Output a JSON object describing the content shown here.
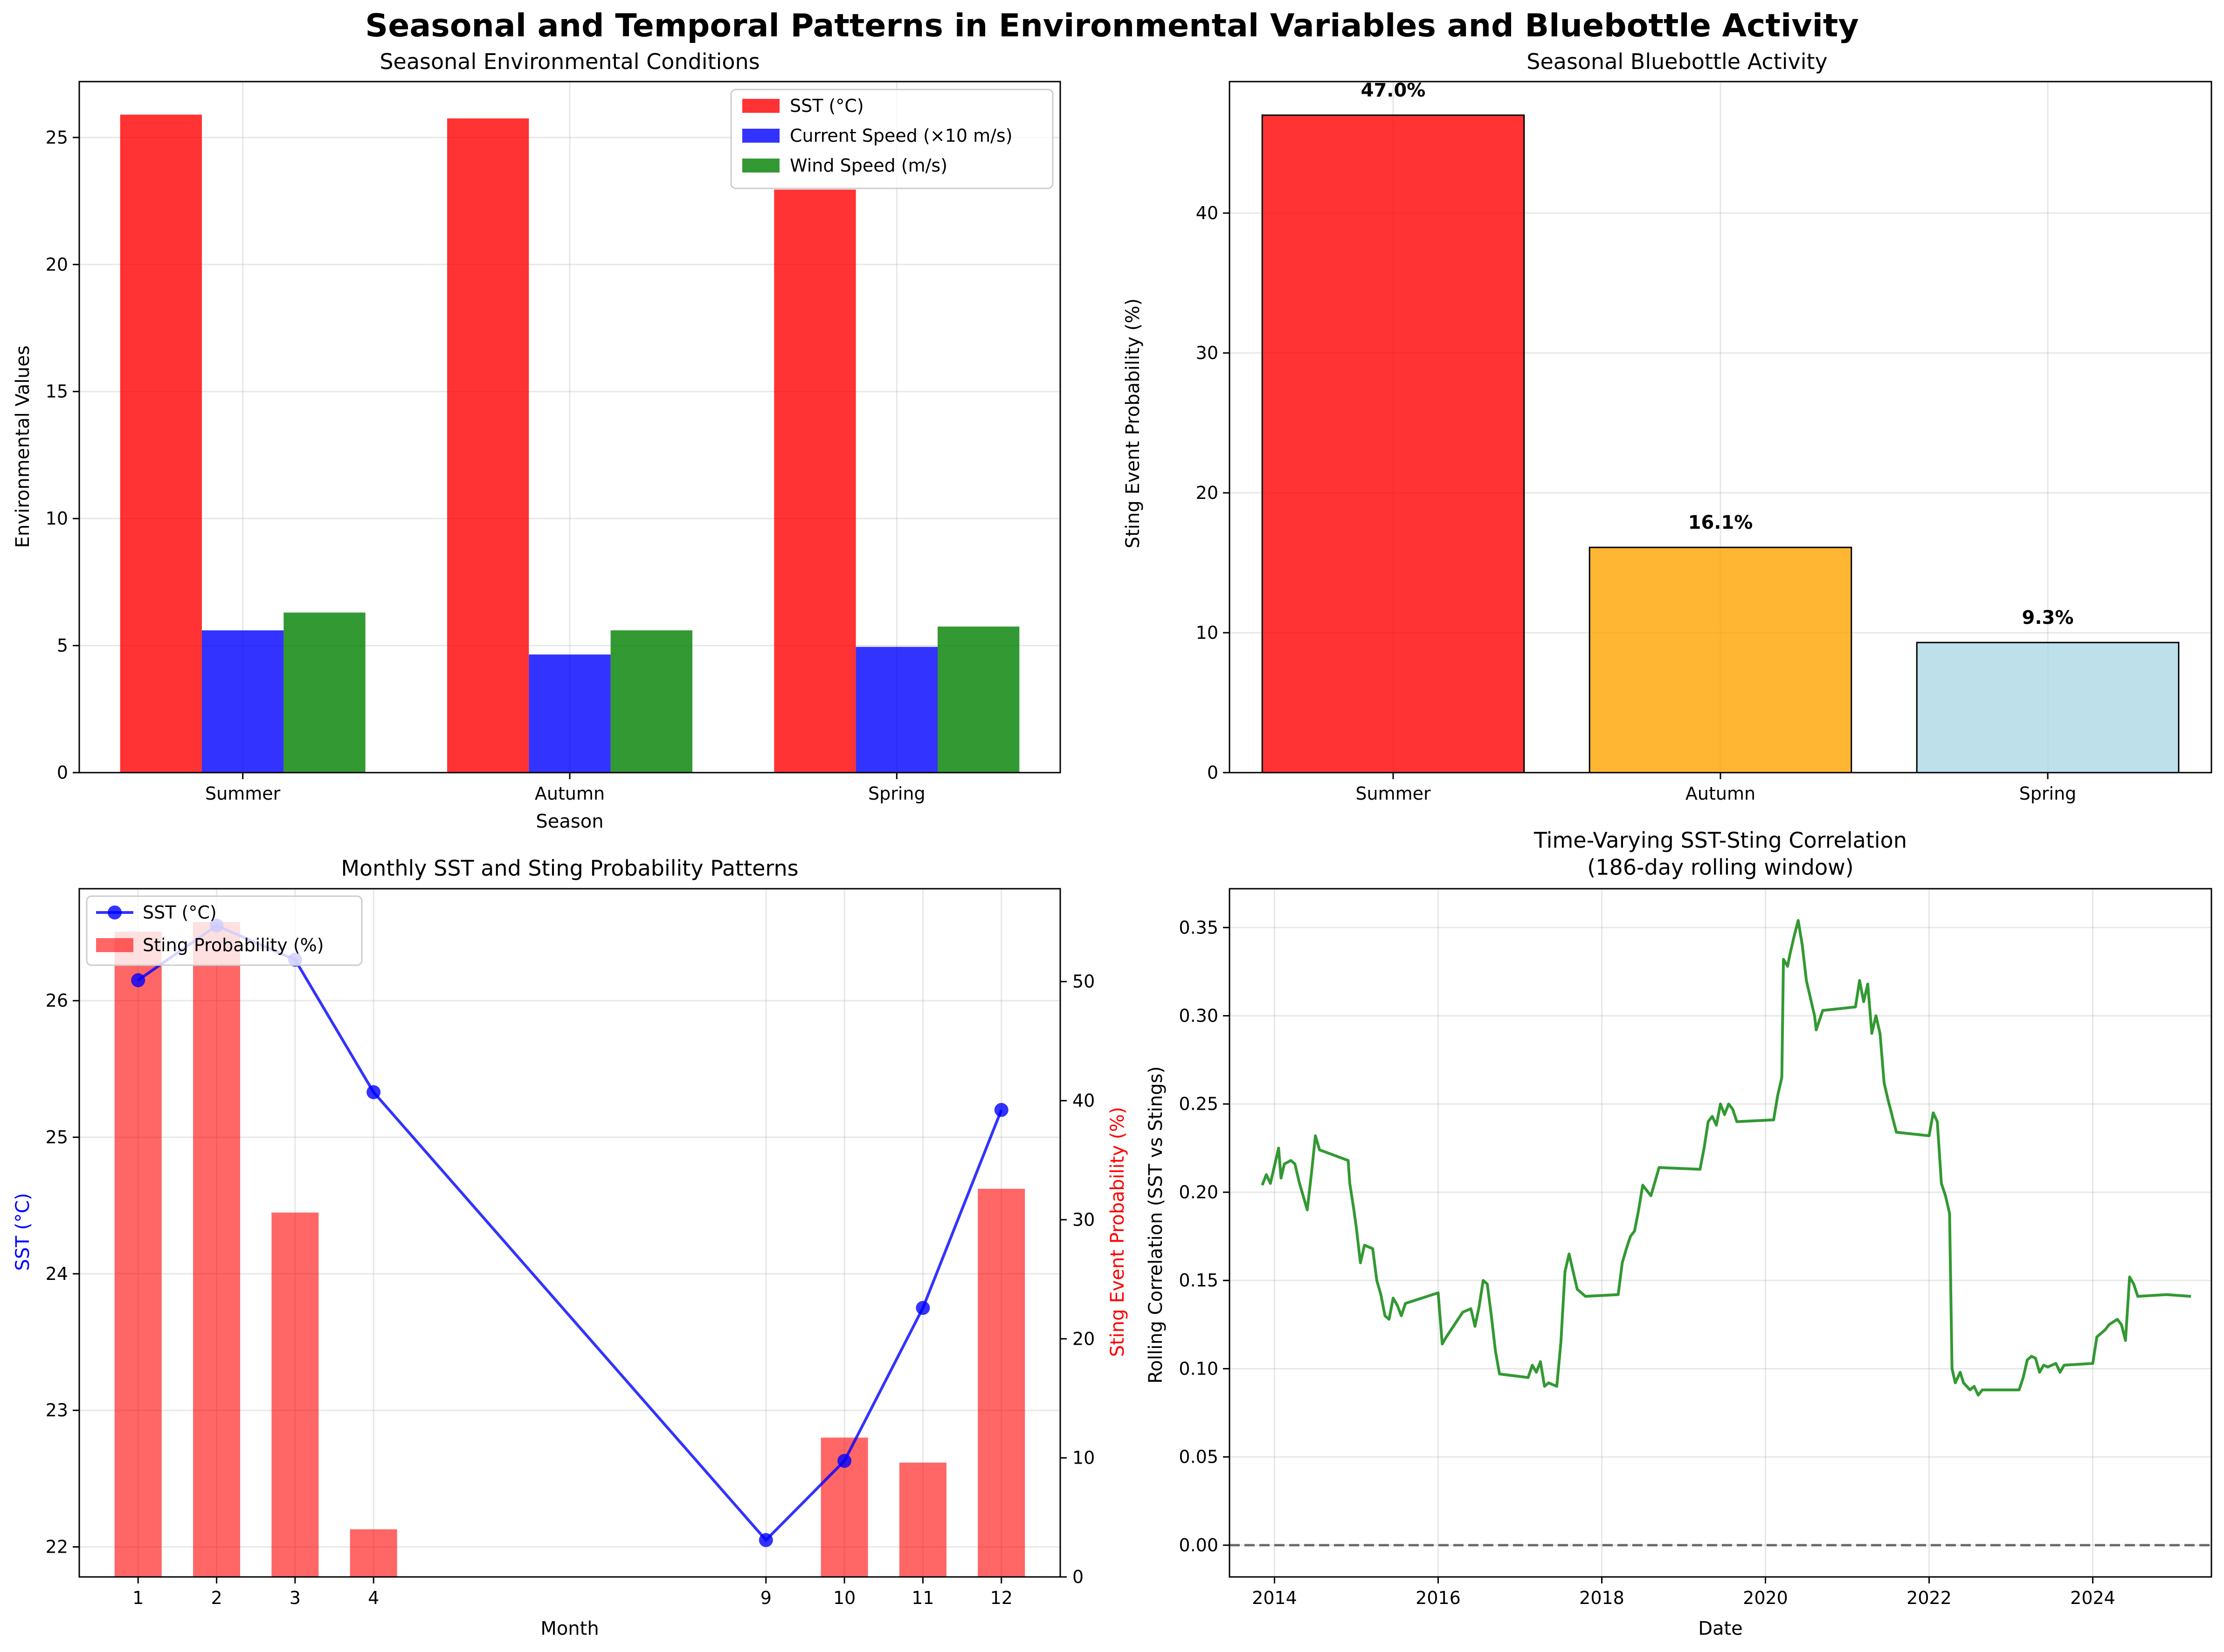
{
  "figure": {
    "title": "Seasonal and Temporal Patterns in Environmental Variables and Bluebottle Activity"
  },
  "chart_data": [
    {
      "id": "seasonal-env",
      "type": "bar",
      "title": "Seasonal Environmental Conditions",
      "xlabel": "Season",
      "ylabel": "Environmental Values",
      "categories": [
        "Summer",
        "Autumn",
        "Spring"
      ],
      "series": [
        {
          "name": "SST (°C)",
          "color": "#ff0000",
          "values": [
            25.9,
            25.75,
            22.95
          ]
        },
        {
          "name": "Current Speed (×10 m/s)",
          "color": "#0000ff",
          "values": [
            5.6,
            4.65,
            4.95
          ]
        },
        {
          "name": "Wind Speed (m/s)",
          "color": "#008000",
          "values": [
            6.3,
            5.6,
            5.75
          ]
        }
      ],
      "ylim": [
        0,
        27.2
      ],
      "yticks": [
        0,
        5,
        10,
        15,
        20,
        25
      ],
      "grid": true,
      "legend": "top-right"
    },
    {
      "id": "seasonal-sting",
      "type": "bar",
      "title": "Seasonal Bluebottle Activity",
      "xlabel": "",
      "ylabel": "Sting Event Probability (%)",
      "categories": [
        "Summer",
        "Autumn",
        "Spring"
      ],
      "values": [
        47.0,
        16.1,
        9.3
      ],
      "data_labels": [
        "47.0%",
        "16.1%",
        "9.3%"
      ],
      "colors": [
        "#ff0000",
        "#ffa500",
        "#add8e6"
      ],
      "ylim": [
        0,
        49.4
      ],
      "yticks": [
        0,
        10,
        20,
        30,
        40
      ],
      "grid": true
    },
    {
      "id": "monthly-patterns",
      "type": "line+bar",
      "title": "Monthly SST and Sting Probability Patterns",
      "xlabel": "Month",
      "ylabel": "SST (°C)",
      "ylabel_right": "Sting Event Probability (%)",
      "x": [
        1,
        2,
        3,
        4,
        9,
        10,
        11,
        12
      ],
      "series": [
        {
          "name": "SST (°C)",
          "kind": "line",
          "axis": "left",
          "color": "#0000ff",
          "values": [
            26.15,
            26.55,
            26.3,
            25.33,
            22.05,
            22.63,
            23.75,
            25.2
          ]
        },
        {
          "name": "Sting Probability (%)",
          "kind": "bar",
          "axis": "right",
          "color": "#ff0000",
          "values": [
            54.2,
            55.0,
            30.6,
            4.0,
            0,
            11.7,
            9.6,
            32.6
          ]
        }
      ],
      "xlim": [
        0.25,
        12.75
      ],
      "ylim": [
        21.78,
        26.82
      ],
      "ylim_right": [
        0,
        57.8
      ],
      "xticks": [
        1,
        2,
        3,
        4,
        9,
        10,
        11,
        12
      ],
      "yticks": [
        22,
        23,
        24,
        25,
        26
      ],
      "yticks_right": [
        0,
        10,
        20,
        30,
        40,
        50
      ],
      "grid": true,
      "legend": "top-left"
    },
    {
      "id": "rolling-correlation",
      "type": "line",
      "title": "Time-Varying SST-Sting Correlation",
      "subtitle": "(186-day rolling window)",
      "xlabel": "Date",
      "ylabel": "Rolling Correlation (SST vs Stings)",
      "color": "#008000",
      "reference_line": {
        "y": 0,
        "style": "dashed",
        "color": "#696969"
      },
      "xlim": [
        2013.45,
        2025.45
      ],
      "ylim": [
        -0.018,
        0.372
      ],
      "xticks": [
        2014,
        2016,
        2018,
        2020,
        2022,
        2024
      ],
      "yticks": [
        0.0,
        0.05,
        0.1,
        0.15,
        0.2,
        0.25,
        0.3,
        0.35
      ],
      "ytick_labels": [
        "0.00",
        "0.05",
        "0.10",
        "0.15",
        "0.20",
        "0.25",
        "0.30",
        "0.35"
      ],
      "grid": true,
      "points": [
        [
          2013.85,
          0.204
        ],
        [
          2013.9,
          0.21
        ],
        [
          2013.95,
          0.205
        ],
        [
          2014.0,
          0.215
        ],
        [
          2014.05,
          0.225
        ],
        [
          2014.08,
          0.208
        ],
        [
          2014.12,
          0.216
        ],
        [
          2014.2,
          0.218
        ],
        [
          2014.25,
          0.216
        ],
        [
          2014.3,
          0.206
        ],
        [
          2014.35,
          0.198
        ],
        [
          2014.4,
          0.19
        ],
        [
          2014.45,
          0.21
        ],
        [
          2014.5,
          0.232
        ],
        [
          2014.55,
          0.224
        ],
        [
          2014.9,
          0.218
        ],
        [
          2014.92,
          0.205
        ],
        [
          2014.97,
          0.19
        ],
        [
          2015.0,
          0.18
        ],
        [
          2015.05,
          0.16
        ],
        [
          2015.1,
          0.17
        ],
        [
          2015.2,
          0.168
        ],
        [
          2015.25,
          0.15
        ],
        [
          2015.3,
          0.142
        ],
        [
          2015.35,
          0.13
        ],
        [
          2015.4,
          0.128
        ],
        [
          2015.45,
          0.14
        ],
        [
          2015.5,
          0.136
        ],
        [
          2015.55,
          0.13
        ],
        [
          2015.6,
          0.137
        ],
        [
          2016.0,
          0.143
        ],
        [
          2016.05,
          0.114
        ],
        [
          2016.1,
          0.118
        ],
        [
          2016.2,
          0.125
        ],
        [
          2016.3,
          0.132
        ],
        [
          2016.4,
          0.134
        ],
        [
          2016.45,
          0.124
        ],
        [
          2016.5,
          0.135
        ],
        [
          2016.55,
          0.15
        ],
        [
          2016.6,
          0.148
        ],
        [
          2016.65,
          0.13
        ],
        [
          2016.7,
          0.11
        ],
        [
          2016.75,
          0.097
        ],
        [
          2017.1,
          0.095
        ],
        [
          2017.15,
          0.102
        ],
        [
          2017.2,
          0.098
        ],
        [
          2017.25,
          0.104
        ],
        [
          2017.3,
          0.09
        ],
        [
          2017.35,
          0.092
        ],
        [
          2017.45,
          0.09
        ],
        [
          2017.5,
          0.115
        ],
        [
          2017.55,
          0.155
        ],
        [
          2017.6,
          0.165
        ],
        [
          2017.65,
          0.155
        ],
        [
          2017.7,
          0.145
        ],
        [
          2017.8,
          0.141
        ],
        [
          2018.2,
          0.142
        ],
        [
          2018.25,
          0.16
        ],
        [
          2018.3,
          0.168
        ],
        [
          2018.35,
          0.175
        ],
        [
          2018.4,
          0.178
        ],
        [
          2018.45,
          0.19
        ],
        [
          2018.5,
          0.204
        ],
        [
          2018.55,
          0.201
        ],
        [
          2018.6,
          0.198
        ],
        [
          2018.7,
          0.214
        ],
        [
          2019.2,
          0.213
        ],
        [
          2019.25,
          0.225
        ],
        [
          2019.3,
          0.24
        ],
        [
          2019.35,
          0.243
        ],
        [
          2019.4,
          0.238
        ],
        [
          2019.45,
          0.25
        ],
        [
          2019.5,
          0.244
        ],
        [
          2019.55,
          0.25
        ],
        [
          2019.6,
          0.247
        ],
        [
          2019.65,
          0.24
        ],
        [
          2020.1,
          0.241
        ],
        [
          2020.15,
          0.255
        ],
        [
          2020.2,
          0.265
        ],
        [
          2020.22,
          0.332
        ],
        [
          2020.27,
          0.328
        ],
        [
          2020.3,
          0.335
        ],
        [
          2020.35,
          0.345
        ],
        [
          2020.4,
          0.354
        ],
        [
          2020.45,
          0.34
        ],
        [
          2020.5,
          0.32
        ],
        [
          2020.55,
          0.31
        ],
        [
          2020.6,
          0.3
        ],
        [
          2020.62,
          0.292
        ],
        [
          2020.7,
          0.303
        ],
        [
          2021.1,
          0.305
        ],
        [
          2021.15,
          0.32
        ],
        [
          2021.2,
          0.308
        ],
        [
          2021.25,
          0.318
        ],
        [
          2021.3,
          0.29
        ],
        [
          2021.35,
          0.3
        ],
        [
          2021.4,
          0.29
        ],
        [
          2021.45,
          0.262
        ],
        [
          2021.5,
          0.252
        ],
        [
          2021.55,
          0.243
        ],
        [
          2021.6,
          0.234
        ],
        [
          2022.0,
          0.232
        ],
        [
          2022.05,
          0.245
        ],
        [
          2022.1,
          0.24
        ],
        [
          2022.15,
          0.205
        ],
        [
          2022.2,
          0.198
        ],
        [
          2022.25,
          0.188
        ],
        [
          2022.28,
          0.1
        ],
        [
          2022.32,
          0.092
        ],
        [
          2022.38,
          0.098
        ],
        [
          2022.42,
          0.092
        ],
        [
          2022.5,
          0.088
        ],
        [
          2022.55,
          0.09
        ],
        [
          2022.6,
          0.085
        ],
        [
          2022.65,
          0.088
        ],
        [
          2023.1,
          0.088
        ],
        [
          2023.15,
          0.095
        ],
        [
          2023.2,
          0.105
        ],
        [
          2023.25,
          0.107
        ],
        [
          2023.3,
          0.106
        ],
        [
          2023.35,
          0.098
        ],
        [
          2023.4,
          0.102
        ],
        [
          2023.45,
          0.101
        ],
        [
          2023.55,
          0.103
        ],
        [
          2023.6,
          0.098
        ],
        [
          2023.65,
          0.102
        ],
        [
          2024.0,
          0.103
        ],
        [
          2024.05,
          0.118
        ],
        [
          2024.1,
          0.12
        ],
        [
          2024.15,
          0.122
        ],
        [
          2024.2,
          0.125
        ],
        [
          2024.3,
          0.128
        ],
        [
          2024.35,
          0.125
        ],
        [
          2024.4,
          0.116
        ],
        [
          2024.45,
          0.152
        ],
        [
          2024.5,
          0.148
        ],
        [
          2024.55,
          0.141
        ],
        [
          2024.9,
          0.142
        ],
        [
          2025.2,
          0.141
        ]
      ]
    }
  ]
}
